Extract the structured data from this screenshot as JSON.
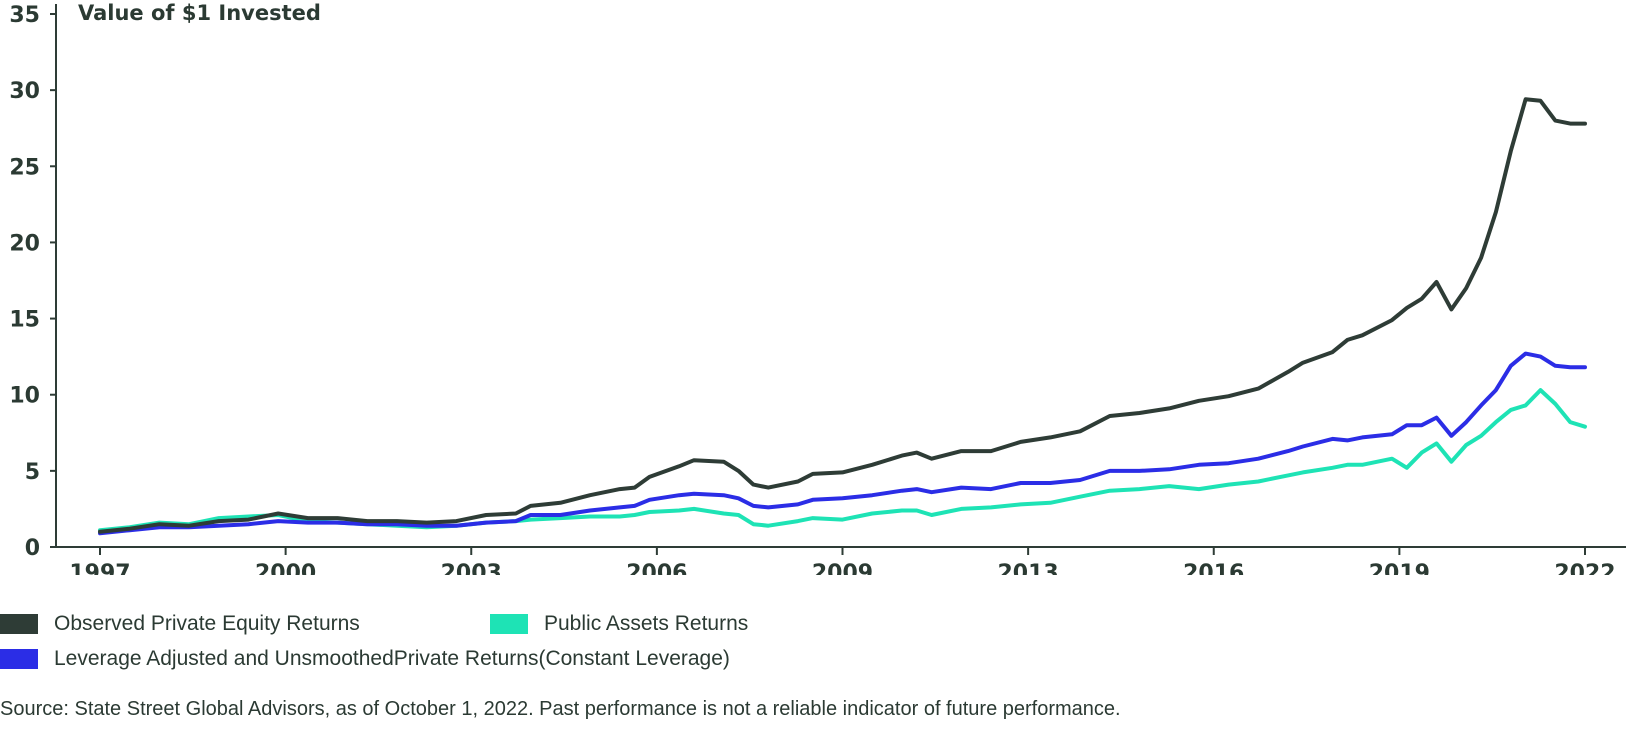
{
  "colors": {
    "private_equity": "#2e3c36",
    "public_assets": "#1ee3b5",
    "leverage_adjusted": "#2b2de6",
    "axis": "#2e3c36"
  },
  "chart_data": {
    "type": "line",
    "title": "Value of $1 Invested",
    "xlabel": "",
    "ylabel": "",
    "xlim": [
      1997,
      2022
    ],
    "ylim": [
      0,
      35
    ],
    "y_ticks": [
      "0",
      "5",
      "10",
      "15",
      "20",
      "25",
      "30",
      "35"
    ],
    "x_ticks": [
      "1997",
      "2000",
      "2003",
      "2006",
      "2009",
      "2013",
      "2016",
      "2019",
      "2022"
    ],
    "series": [
      {
        "name": "Observed Private Equity Returns",
        "color": "#2e3c36",
        "x": [
          1997.0,
          1997.5,
          1998.0,
          1998.5,
          1999.0,
          1999.5,
          2000.0,
          2000.5,
          2001.0,
          2001.5,
          2002.0,
          2002.5,
          2003.0,
          2003.5,
          2004.0,
          2004.25,
          2004.75,
          2005.25,
          2005.75,
          2006.0,
          2006.25,
          2006.75,
          2007.0,
          2007.5,
          2007.75,
          2008.0,
          2008.25,
          2008.75,
          2009.0,
          2009.5,
          2010.0,
          2010.5,
          2010.75,
          2011.0,
          2011.5,
          2012.0,
          2012.5,
          2013.0,
          2013.5,
          2014.0,
          2014.5,
          2015.0,
          2015.5,
          2016.0,
          2016.5,
          2017.0,
          2017.25,
          2017.75,
          2018.0,
          2018.25,
          2018.75,
          2019.0,
          2019.25,
          2019.5,
          2019.75,
          2020.0,
          2020.25,
          2020.5,
          2020.75,
          2021.0,
          2021.25,
          2021.5,
          2021.75,
          2022.0
        ],
        "values": [
          1.0,
          1.2,
          1.5,
          1.4,
          1.7,
          1.8,
          2.2,
          1.9,
          1.9,
          1.7,
          1.7,
          1.6,
          1.7,
          2.1,
          2.2,
          2.7,
          2.9,
          3.4,
          3.8,
          3.9,
          4.6,
          5.3,
          5.7,
          5.6,
          5.0,
          4.1,
          3.9,
          4.3,
          4.8,
          4.9,
          5.4,
          6.0,
          6.2,
          5.8,
          6.3,
          6.3,
          6.9,
          7.2,
          7.6,
          8.6,
          8.8,
          9.1,
          9.6,
          9.9,
          10.4,
          11.5,
          12.1,
          12.8,
          13.6,
          13.9,
          14.9,
          15.7,
          16.3,
          17.4,
          15.6,
          17.0,
          19.0,
          22.0,
          26.0,
          29.4,
          29.3,
          28.0,
          27.8,
          27.8
        ]
      },
      {
        "name": "Leverage Adjusted and UnsmoothedPrivate Returns(Constant Leverage)",
        "color": "#2b2de6",
        "x": [
          1997.0,
          1997.5,
          1998.0,
          1998.5,
          1999.0,
          1999.5,
          2000.0,
          2000.5,
          2001.0,
          2001.5,
          2002.0,
          2002.5,
          2003.0,
          2003.5,
          2004.0,
          2004.25,
          2004.75,
          2005.25,
          2005.75,
          2006.0,
          2006.25,
          2006.75,
          2007.0,
          2007.5,
          2007.75,
          2008.0,
          2008.25,
          2008.75,
          2009.0,
          2009.5,
          2010.0,
          2010.5,
          2010.75,
          2011.0,
          2011.5,
          2012.0,
          2012.5,
          2013.0,
          2013.5,
          2014.0,
          2014.5,
          2015.0,
          2015.5,
          2016.0,
          2016.5,
          2017.0,
          2017.25,
          2017.75,
          2018.0,
          2018.25,
          2018.75,
          2019.0,
          2019.25,
          2019.5,
          2019.75,
          2020.0,
          2020.25,
          2020.5,
          2020.75,
          2021.0,
          2021.25,
          2021.5,
          2021.75,
          2022.0
        ],
        "values": [
          0.9,
          1.1,
          1.3,
          1.3,
          1.4,
          1.5,
          1.7,
          1.6,
          1.6,
          1.5,
          1.5,
          1.4,
          1.4,
          1.6,
          1.7,
          2.1,
          2.1,
          2.4,
          2.6,
          2.7,
          3.1,
          3.4,
          3.5,
          3.4,
          3.2,
          2.7,
          2.6,
          2.8,
          3.1,
          3.2,
          3.4,
          3.7,
          3.8,
          3.6,
          3.9,
          3.8,
          4.2,
          4.2,
          4.4,
          5.0,
          5.0,
          5.1,
          5.4,
          5.5,
          5.8,
          6.3,
          6.6,
          7.1,
          7.0,
          7.2,
          7.4,
          8.0,
          8.0,
          8.5,
          7.3,
          8.2,
          9.3,
          10.3,
          11.9,
          12.7,
          12.5,
          11.9,
          11.8,
          11.8
        ]
      },
      {
        "name": "Public Assets Returns",
        "color": "#1ee3b5",
        "x": [
          1997.0,
          1997.5,
          1998.0,
          1998.5,
          1999.0,
          1999.5,
          2000.0,
          2000.5,
          2001.0,
          2001.5,
          2002.0,
          2002.5,
          2003.0,
          2003.5,
          2004.0,
          2004.25,
          2004.75,
          2005.25,
          2005.75,
          2006.0,
          2006.25,
          2006.75,
          2007.0,
          2007.5,
          2007.75,
          2008.0,
          2008.25,
          2008.75,
          2009.0,
          2009.5,
          2010.0,
          2010.5,
          2010.75,
          2011.0,
          2011.5,
          2012.0,
          2012.5,
          2013.0,
          2013.5,
          2014.0,
          2014.5,
          2015.0,
          2015.5,
          2016.0,
          2016.5,
          2017.0,
          2017.25,
          2017.75,
          2018.0,
          2018.25,
          2018.75,
          2019.0,
          2019.25,
          2019.5,
          2019.75,
          2020.0,
          2020.25,
          2020.5,
          2020.75,
          2021.0,
          2021.25,
          2021.5,
          2021.75,
          2022.0
        ],
        "values": [
          1.1,
          1.3,
          1.6,
          1.5,
          1.9,
          2.0,
          2.1,
          1.7,
          1.6,
          1.5,
          1.4,
          1.3,
          1.4,
          1.6,
          1.7,
          1.8,
          1.9,
          2.0,
          2.0,
          2.1,
          2.3,
          2.4,
          2.5,
          2.2,
          2.1,
          1.5,
          1.4,
          1.7,
          1.9,
          1.8,
          2.2,
          2.4,
          2.4,
          2.1,
          2.5,
          2.6,
          2.8,
          2.9,
          3.3,
          3.7,
          3.8,
          4.0,
          3.8,
          4.1,
          4.3,
          4.7,
          4.9,
          5.2,
          5.4,
          5.4,
          5.8,
          5.2,
          6.2,
          6.8,
          5.6,
          6.7,
          7.3,
          8.2,
          9.0,
          9.3,
          10.3,
          9.4,
          8.2,
          7.9
        ]
      }
    ]
  },
  "legend": [
    {
      "label": "Observed Private Equity Returns",
      "color": "#2e3c36"
    },
    {
      "label": "Public Assets Returns",
      "color": "#1ee3b5"
    },
    {
      "label": "Leverage Adjusted and UnsmoothedPrivate Returns(Constant Leverage)",
      "color": "#2b2de6"
    }
  ],
  "source_note": "Source: State Street Global Advisors, as of October 1, 2022. Past performance is not a reliable indicator of future performance."
}
